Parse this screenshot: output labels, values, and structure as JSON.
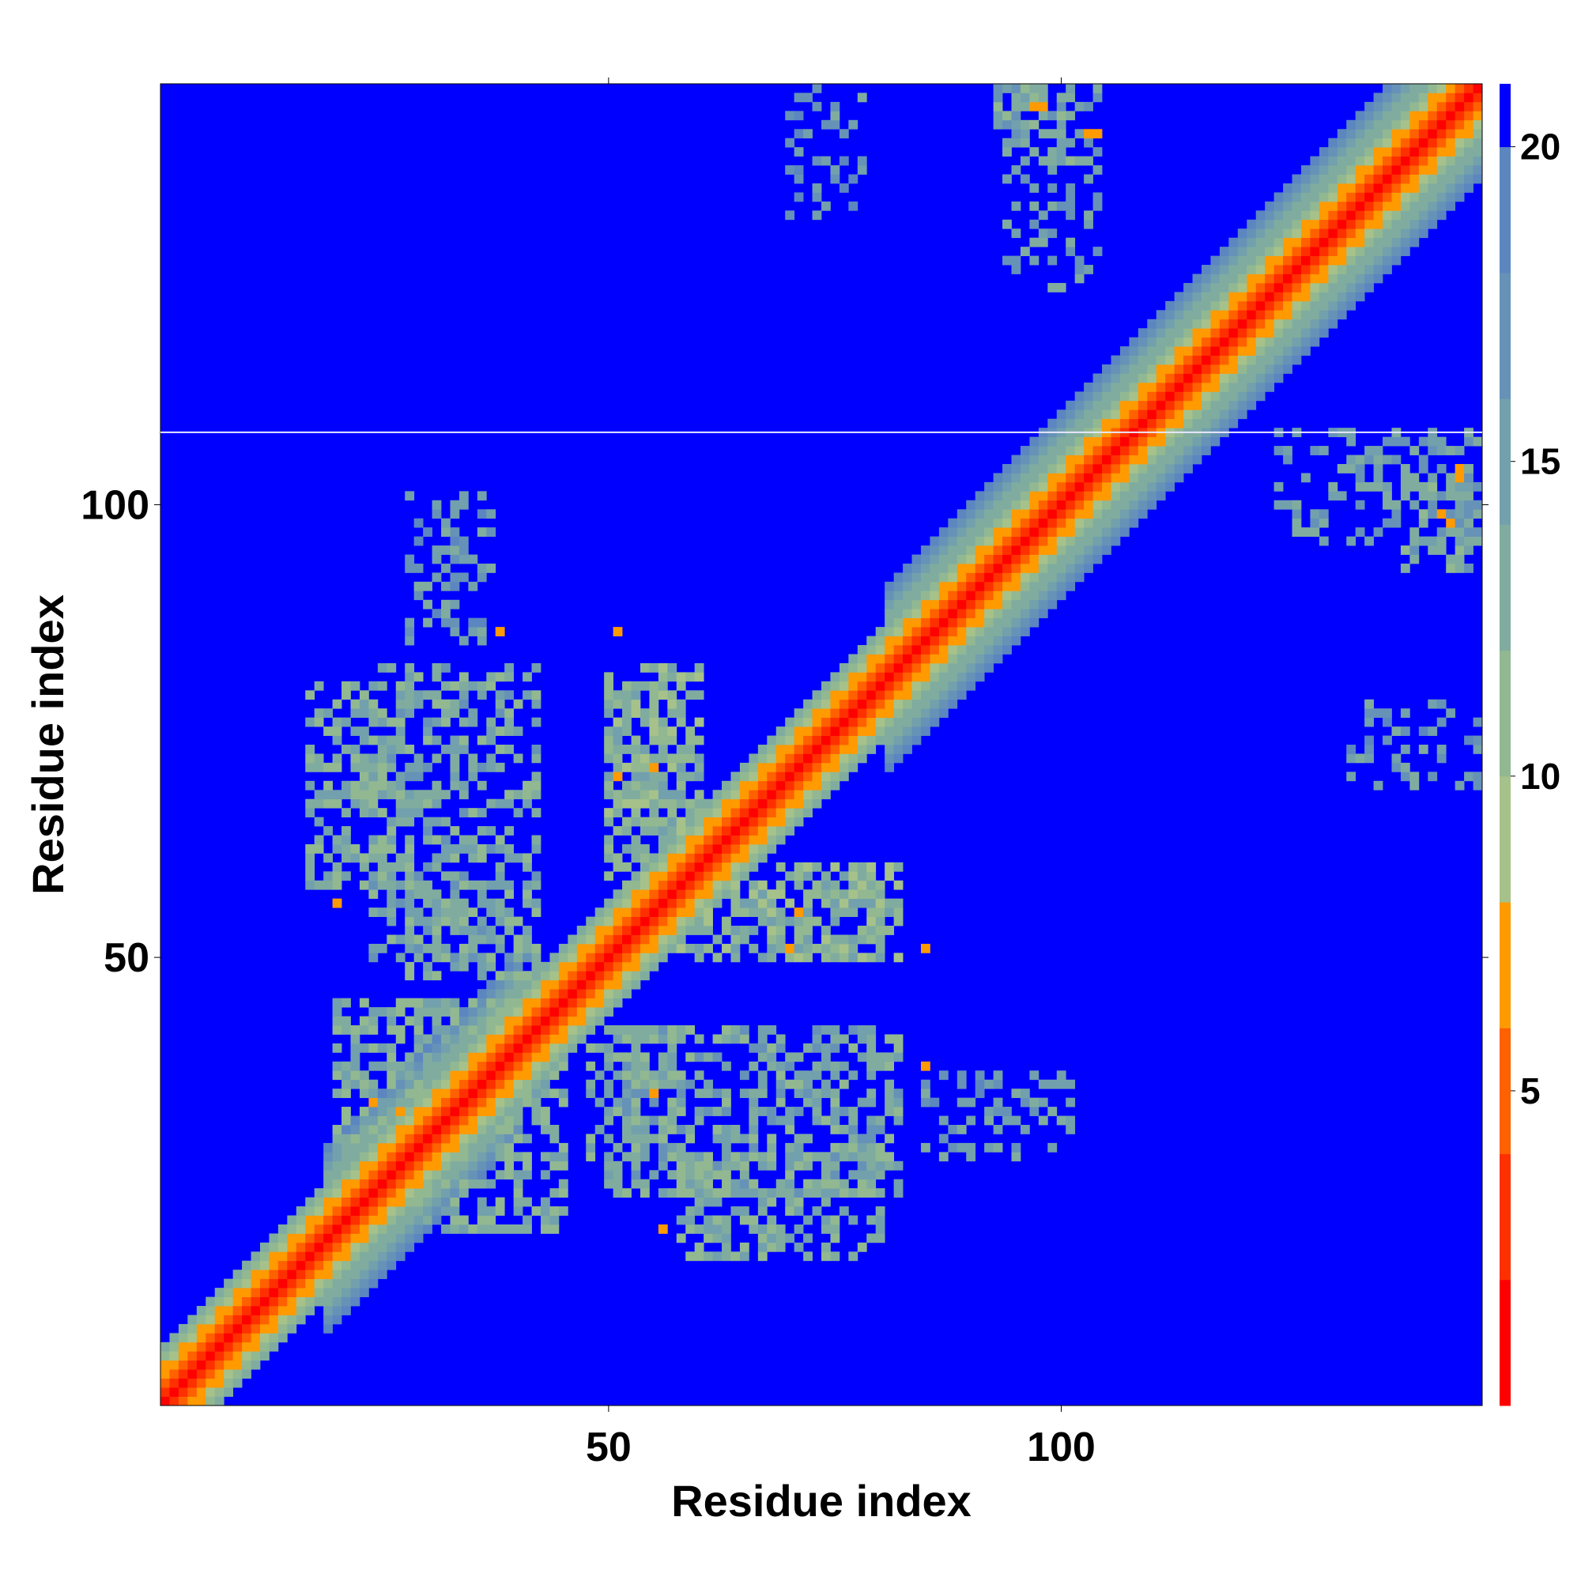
{
  "chart_data": {
    "type": "heatmap",
    "title": "",
    "xlabel": "Residue index",
    "ylabel": "Residue index",
    "n_residues": 146,
    "xlim": [
      0.5,
      146.5
    ],
    "ylim": [
      0.5,
      146.5
    ],
    "x_ticks": [
      50,
      100
    ],
    "y_ticks": [
      50,
      100
    ],
    "x_tick_labels": [
      "50",
      "100"
    ],
    "y_tick_labels": [
      "50",
      "100"
    ],
    "colorbar": {
      "range": [
        0,
        21
      ],
      "ticks": [
        5,
        10,
        15,
        20
      ],
      "tick_labels": [
        "5",
        "10",
        "15",
        "20"
      ],
      "bands": [
        {
          "from": 0,
          "to": 2,
          "color": "#ff0000"
        },
        {
          "from": 2,
          "to": 4,
          "color": "#ff3000"
        },
        {
          "from": 4,
          "to": 6,
          "color": "#ff6000"
        },
        {
          "from": 6,
          "to": 8,
          "color": "#ff9a00"
        },
        {
          "from": 8,
          "to": 10,
          "color": "#a6c28a"
        },
        {
          "from": 10,
          "to": 12,
          "color": "#92b892"
        },
        {
          "from": 12,
          "to": 14,
          "color": "#80aca0"
        },
        {
          "from": 14,
          "to": 16,
          "color": "#72a0ac"
        },
        {
          "from": 16,
          "to": 18,
          "color": "#6692b8"
        },
        {
          "from": 18,
          "to": 20,
          "color": "#5c86c0"
        },
        {
          "from": 20,
          "to": 21,
          "color": "#0000ff"
        }
      ]
    },
    "background_value": 21,
    "diagonal_band_profile": [
      0,
      3.0,
      5.5,
      7.0,
      9.0,
      10.5,
      12.0,
      13.5,
      15.0,
      16.5,
      18.0
    ],
    "contact_blocks": [
      {
        "x": [
          20,
          45
        ],
        "y": [
          20,
          45
        ],
        "value": 13,
        "density": 0.55
      },
      {
        "x": [
          17,
          28
        ],
        "y": [
          58,
          80
        ],
        "value": 13,
        "density": 0.5
      },
      {
        "x": [
          58,
          80
        ],
        "y": [
          17,
          28
        ],
        "value": 13,
        "density": 0.5
      },
      {
        "x": [
          50,
          58
        ],
        "y": [
          58,
          80
        ],
        "value": 12,
        "density": 0.5
      },
      {
        "x": [
          58,
          80
        ],
        "y": [
          50,
          58
        ],
        "value": 12,
        "density": 0.5
      },
      {
        "x": [
          28,
          42
        ],
        "y": [
          48,
          58
        ],
        "value": 13,
        "density": 0.45
      },
      {
        "x": [
          48,
          58
        ],
        "y": [
          28,
          42
        ],
        "value": 13,
        "density": 0.45
      },
      {
        "x": [
          50,
          82
        ],
        "y": [
          24,
          42
        ],
        "value": 14,
        "density": 0.5
      },
      {
        "x": [
          24,
          42
        ],
        "y": [
          50,
          82
        ],
        "value": 14,
        "density": 0.45
      },
      {
        "x": [
          64,
          82
        ],
        "y": [
          50,
          60
        ],
        "value": 12,
        "density": 0.5
      },
      {
        "x": [
          50,
          60
        ],
        "y": [
          64,
          82
        ],
        "value": 12,
        "density": 0.5
      },
      {
        "x": [
          93,
          102
        ],
        "y": [
          138,
          146
        ],
        "value": 14,
        "density": 0.45
      },
      {
        "x": [
          138,
          146
        ],
        "y": [
          93,
          102
        ],
        "value": 14,
        "density": 0.45
      },
      {
        "x": [
          124,
          146
        ],
        "y": [
          96,
          108
        ],
        "value": 15,
        "density": 0.35
      },
      {
        "x": [
          94,
          104
        ],
        "y": [
          124,
          146
        ],
        "value": 15,
        "density": 0.3
      },
      {
        "x": [
          28,
          37
        ],
        "y": [
          85,
          101
        ],
        "value": 16,
        "density": 0.3
      },
      {
        "x": [
          85,
          101
        ],
        "y": [
          28,
          37
        ],
        "value": 16,
        "density": 0.3
      },
      {
        "x": [
          69,
          78
        ],
        "y": [
          132,
          146
        ],
        "value": 16,
        "density": 0.25
      },
      {
        "x": [
          132,
          146
        ],
        "y": [
          69,
          78
        ],
        "value": 16,
        "density": 0.25
      }
    ],
    "close_contacts": [
      {
        "x": 98,
        "y": 144,
        "value": 7
      },
      {
        "x": 97,
        "y": 144,
        "value": 7
      },
      {
        "x": 103,
        "y": 141,
        "value": 7
      },
      {
        "x": 104,
        "y": 141,
        "value": 7
      },
      {
        "x": 144,
        "y": 104,
        "value": 7
      },
      {
        "x": 144,
        "y": 103,
        "value": 7
      },
      {
        "x": 142,
        "y": 99,
        "value": 7
      },
      {
        "x": 143,
        "y": 98,
        "value": 7
      },
      {
        "x": 38,
        "y": 86,
        "value": 7
      },
      {
        "x": 51,
        "y": 86,
        "value": 7
      },
      {
        "x": 20,
        "y": 56,
        "value": 7
      },
      {
        "x": 85,
        "y": 51,
        "value": 7
      },
      {
        "x": 85,
        "y": 38,
        "value": 7
      },
      {
        "x": 56,
        "y": 20,
        "value": 7
      },
      {
        "x": 55,
        "y": 35,
        "value": 7
      },
      {
        "x": 71,
        "y": 55,
        "value": 7
      },
      {
        "x": 70,
        "y": 51,
        "value": 7
      },
      {
        "x": 51,
        "y": 70,
        "value": 7
      },
      {
        "x": 55,
        "y": 71,
        "value": 7
      },
      {
        "x": 24,
        "y": 34,
        "value": 7
      },
      {
        "x": 27,
        "y": 33,
        "value": 7
      },
      {
        "x": 35,
        "y": 39,
        "value": 7
      }
    ],
    "grid": false,
    "legend": "none"
  }
}
